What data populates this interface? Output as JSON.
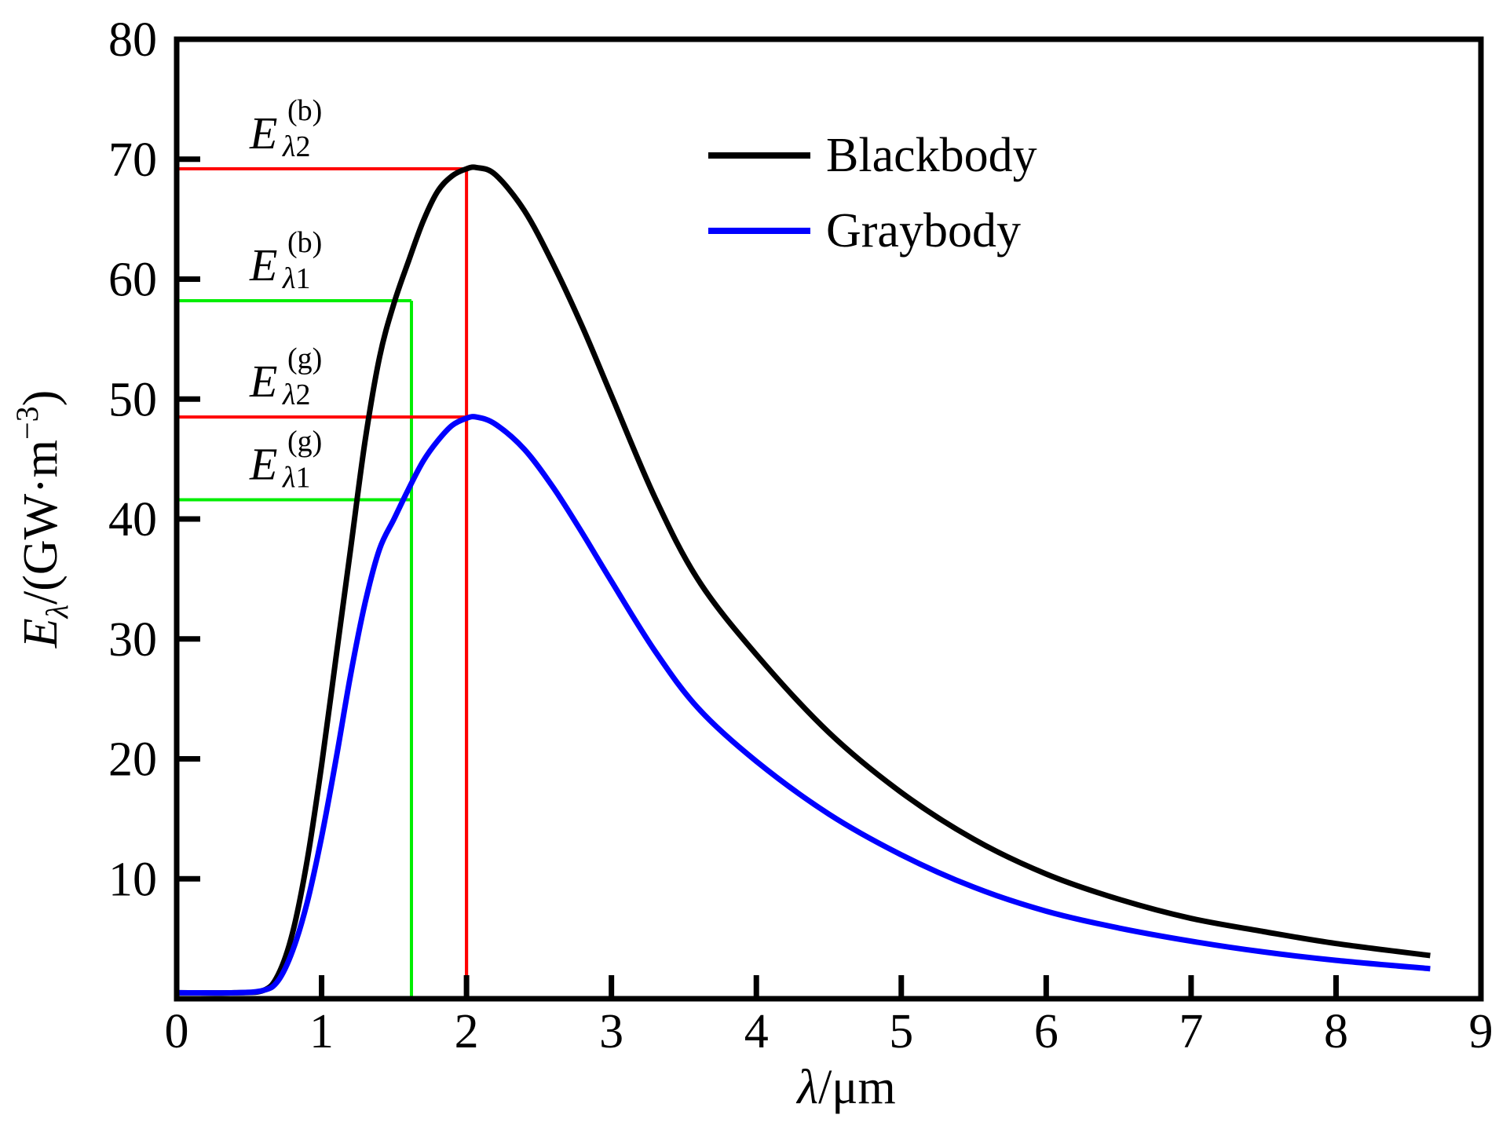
{
  "chart_data": {
    "type": "line",
    "title": "",
    "xlabel": "λ/μm",
    "ylabel": "Eλ/(GW·m⁻³)",
    "xlabel_parts": {
      "var": "λ",
      "unit": "/μm"
    },
    "ylabel_parts": {
      "var": "E",
      "sub": "λ",
      "unit": "/(GW·m",
      "exp": "−3",
      "close": ")"
    },
    "xlim": [
      0,
      9
    ],
    "ylim": [
      0,
      80
    ],
    "xticks": [
      "0",
      "1",
      "2",
      "3",
      "4",
      "5",
      "6",
      "7",
      "8",
      "9"
    ],
    "yticks": [
      "10",
      "20",
      "30",
      "40",
      "50",
      "60",
      "70",
      "80"
    ],
    "xtick_values": [
      0,
      1,
      2,
      3,
      4,
      5,
      6,
      7,
      8,
      9
    ],
    "ytick_values": [
      10,
      20,
      30,
      40,
      50,
      60,
      70,
      80
    ],
    "grid": false,
    "legend_position": "top-right",
    "series": [
      {
        "name": "Blackbody",
        "color": "#000000",
        "x": [
          0.0,
          0.4,
          0.6,
          0.7,
          0.8,
          0.9,
          1.0,
          1.1,
          1.2,
          1.3,
          1.4,
          1.5,
          1.6,
          1.7,
          1.8,
          1.9,
          2.0,
          2.07,
          2.2,
          2.4,
          2.6,
          2.8,
          3.0,
          3.3,
          3.6,
          4.0,
          4.5,
          5.0,
          5.5,
          6.0,
          6.5,
          7.0,
          7.5,
          8.0,
          8.65
        ],
        "y": [
          0.5,
          0.5,
          0.7,
          2.0,
          5.5,
          11.5,
          19.5,
          28.5,
          37.5,
          46.5,
          53.5,
          58.0,
          61.5,
          64.8,
          67.3,
          68.6,
          69.2,
          69.3,
          68.7,
          65.7,
          61.2,
          56.0,
          50.3,
          41.8,
          34.9,
          28.7,
          22.2,
          17.2,
          13.3,
          10.4,
          8.3,
          6.7,
          5.6,
          4.6,
          3.6
        ]
      },
      {
        "name": "Graybody",
        "color": "#0000ff",
        "x": [
          0.0,
          0.4,
          0.6,
          0.7,
          0.8,
          0.9,
          1.0,
          1.1,
          1.2,
          1.3,
          1.4,
          1.5,
          1.6,
          1.7,
          1.8,
          1.9,
          2.0,
          2.07,
          2.2,
          2.4,
          2.6,
          2.8,
          3.0,
          3.3,
          3.6,
          4.0,
          4.5,
          5.0,
          5.5,
          6.0,
          6.5,
          7.0,
          7.5,
          8.0,
          8.65
        ],
        "y": [
          0.5,
          0.5,
          0.7,
          1.5,
          4.0,
          8.0,
          13.5,
          20.0,
          27.0,
          33.0,
          37.5,
          40.0,
          42.5,
          44.8,
          46.5,
          47.8,
          48.4,
          48.5,
          47.9,
          45.8,
          42.6,
          38.8,
          34.8,
          29.0,
          24.2,
          19.8,
          15.4,
          12.0,
          9.3,
          7.3,
          5.9,
          4.8,
          3.9,
          3.2,
          2.5
        ]
      }
    ],
    "reference_lines": [
      {
        "color": "#ff0000",
        "x": 2.0,
        "y": 69.2,
        "label": "E",
        "sub": "λ2",
        "sup": "(b)"
      },
      {
        "color": "#00ee00",
        "x": 1.62,
        "y": 58.2,
        "label": "E",
        "sub": "λ1",
        "sup": "(b)"
      },
      {
        "color": "#ff0000",
        "x": 2.0,
        "y": 48.5,
        "label": "E",
        "sub": "λ2",
        "sup": "(g)"
      },
      {
        "color": "#00ee00",
        "x": 1.62,
        "y": 41.6,
        "label": "E",
        "sub": "λ1",
        "sup": "(g)"
      }
    ]
  }
}
